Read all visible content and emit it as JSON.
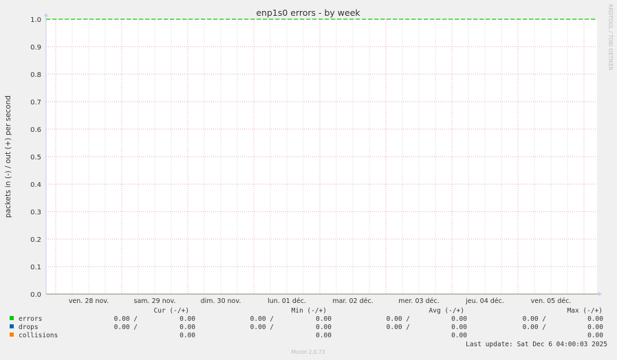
{
  "chart_data": {
    "type": "line",
    "title": "enp1s0 errors - by week",
    "ylabel": "packets in (-) / out (+) per second",
    "ylim": [
      0,
      1.0
    ],
    "yticks": [
      "0.0",
      "0.1",
      "0.2",
      "0.3",
      "0.4",
      "0.5",
      "0.6",
      "0.7",
      "0.8",
      "0.9",
      "1.0"
    ],
    "xticks": [
      "ven. 28 nov.",
      "sam. 29 nov.",
      "dim. 30 nov.",
      "lun. 01 déc.",
      "mar. 02 déc.",
      "mer. 03 déc.",
      "jeu. 04 déc.",
      "ven. 05 déc."
    ],
    "grid": true,
    "threshold": {
      "value": 1.0,
      "color": "#00cc00",
      "style": "dashed"
    },
    "series": [
      {
        "name": "errors",
        "color": "#00cc00",
        "values": [
          0,
          0,
          0,
          0,
          0,
          0,
          0,
          0
        ]
      },
      {
        "name": "drops",
        "color": "#0066b3",
        "values": [
          0,
          0,
          0,
          0,
          0,
          0,
          0,
          0
        ]
      },
      {
        "name": "collisions",
        "color": "#ff8000",
        "values": [
          0,
          0,
          0,
          0,
          0,
          0,
          0,
          0
        ]
      }
    ]
  },
  "legend": {
    "headers": [
      "Cur (-/+)",
      "Min (-/+)",
      "Avg (-/+)",
      "Max (-/+)"
    ],
    "rows": [
      {
        "name": "errors",
        "color": "#00cc00",
        "cur": [
          "0.00 /",
          "0.00"
        ],
        "min": [
          "0.00 /",
          "0.00"
        ],
        "avg": [
          "0.00 /",
          "0.00"
        ],
        "max": [
          "0.00 /",
          "0.00"
        ]
      },
      {
        "name": "drops",
        "color": "#0066b3",
        "cur": [
          "0.00 /",
          "0.00"
        ],
        "min": [
          "0.00 /",
          "0.00"
        ],
        "avg": [
          "0.00 /",
          "0.00"
        ],
        "max": [
          "0.00 /",
          "0.00"
        ]
      },
      {
        "name": "collisions",
        "color": "#ff8000",
        "cur": [
          "",
          "0.00"
        ],
        "min": [
          "",
          "0.00"
        ],
        "avg": [
          "",
          "0.00"
        ],
        "max": [
          "",
          "0.00"
        ]
      }
    ],
    "last_update": "Last update: Sat Dec  6 04:00:03 2025"
  },
  "watermark": "RRDTOOL / TOBI OETIKER",
  "footer": "Munin 2.0.73"
}
